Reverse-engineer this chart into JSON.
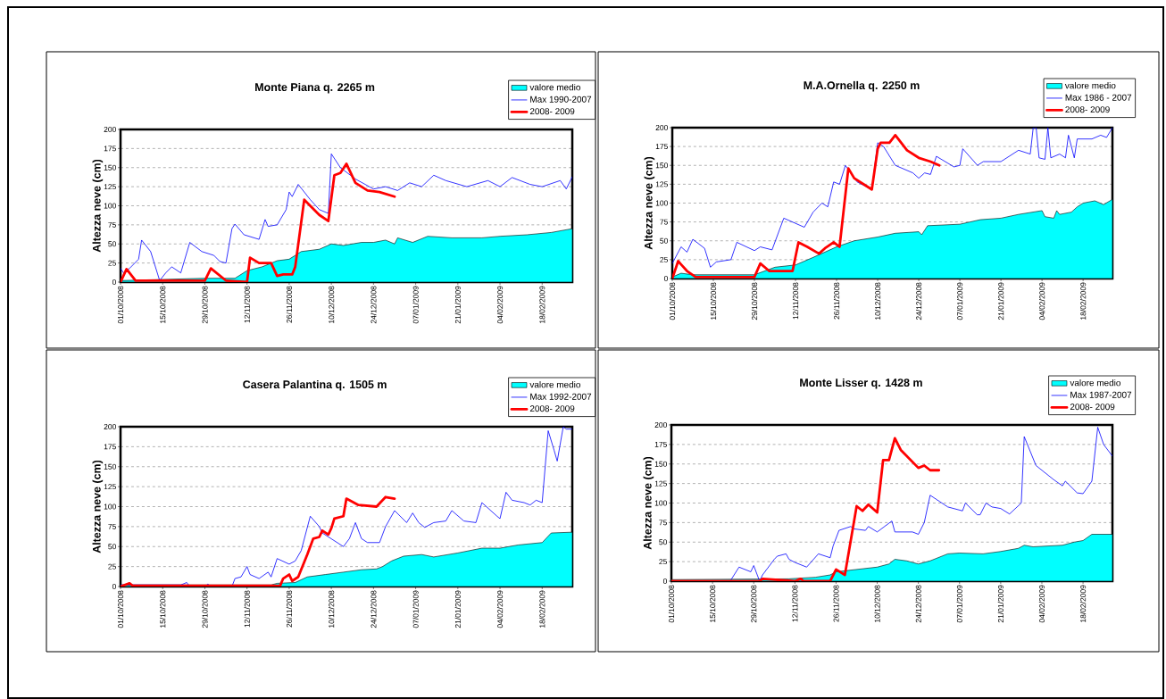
{
  "chart_data": [
    {
      "type": "line",
      "title": "Monte Piana q. 2265 m",
      "ylabel": "Altezza neve (cm)",
      "legend": "top right",
      "grid": "y",
      "xlim": [
        "2008-10-01",
        "2009-02-28"
      ],
      "xticks": [
        {
          "value": "2008-10-01",
          "label": "01/10/2008"
        },
        {
          "value": "2008-10-15",
          "label": "15/10/2008"
        },
        {
          "value": "2008-10-29",
          "label": "29/10/2008"
        },
        {
          "value": "2008-11-12",
          "label": "12/11/2008"
        },
        {
          "value": "2008-11-26",
          "label": "26/11/2008"
        },
        {
          "value": "2008-12-10",
          "label": "10/12/2008"
        },
        {
          "value": "2008-12-24",
          "label": "24/12/2008"
        },
        {
          "value": "2009-01-07",
          "label": "07/01/2009"
        },
        {
          "value": "2009-01-21",
          "label": "21/01/2009"
        },
        {
          "value": "2009-02-04",
          "label": "04/02/2009"
        },
        {
          "value": "2009-02-18",
          "label": "18/02/2009"
        }
      ],
      "ylim": [
        0,
        200
      ],
      "yticks": [
        0,
        25,
        50,
        75,
        100,
        125,
        150,
        175,
        200
      ],
      "series": [
        {
          "name": "valore medio",
          "type": "area",
          "color": "#00ffff",
          "x": [
            "2008-10-01",
            "2008-10-29",
            "2008-11-08",
            "2008-11-12",
            "2008-11-17",
            "2008-11-22",
            "2008-11-26",
            "2008-11-30",
            "2008-12-06",
            "2008-12-10",
            "2008-12-14",
            "2008-12-20",
            "2008-12-24",
            "2008-12-28",
            "2008-12-31",
            "2009-01-01",
            "2009-01-06",
            "2009-01-11",
            "2009-01-19",
            "2009-01-29",
            "2009-02-04",
            "2009-02-13",
            "2009-02-21",
            "2009-02-28"
          ],
          "values": [
            2,
            5,
            5,
            15,
            20,
            28,
            30,
            40,
            43,
            50,
            48,
            52,
            52,
            55,
            50,
            58,
            52,
            60,
            58,
            58,
            60,
            62,
            65,
            70
          ]
        },
        {
          "name": "Max 1990-2007",
          "type": "line",
          "color": "#0000ff",
          "x": [
            "2008-10-01",
            "2008-10-02",
            "2008-10-04",
            "2008-10-07",
            "2008-10-08",
            "2008-10-11",
            "2008-10-14",
            "2008-10-16",
            "2008-10-18",
            "2008-10-21",
            "2008-10-24",
            "2008-10-28",
            "2008-11-01",
            "2008-11-03",
            "2008-11-05",
            "2008-11-07",
            "2008-11-08",
            "2008-11-11",
            "2008-11-16",
            "2008-11-18",
            "2008-11-19",
            "2008-11-22",
            "2008-11-25",
            "2008-11-26",
            "2008-11-27",
            "2008-11-29",
            "2008-12-03",
            "2008-12-06",
            "2008-12-09",
            "2008-12-10",
            "2008-12-13",
            "2008-12-18",
            "2008-12-24",
            "2008-12-28",
            "2009-01-01",
            "2009-01-05",
            "2009-01-09",
            "2009-01-13",
            "2009-01-17",
            "2009-01-24",
            "2009-01-31",
            "2009-02-04",
            "2009-02-08",
            "2009-02-14",
            "2009-02-18",
            "2009-02-24",
            "2009-02-26",
            "2009-02-28"
          ],
          "values": [
            18,
            12,
            18,
            30,
            55,
            40,
            2,
            12,
            20,
            12,
            52,
            40,
            35,
            27,
            25,
            70,
            76,
            62,
            56,
            82,
            73,
            75,
            95,
            118,
            112,
            128,
            108,
            95,
            90,
            168,
            150,
            135,
            122,
            125,
            120,
            130,
            125,
            140,
            133,
            125,
            133,
            125,
            137,
            128,
            125,
            133,
            122,
            138
          ]
        },
        {
          "name": "2008- 2009",
          "type": "line",
          "color": "#ff0000",
          "x": [
            "2008-10-01",
            "2008-10-03",
            "2008-10-06",
            "2008-10-29",
            "2008-10-31",
            "2008-11-05",
            "2008-11-12",
            "2008-11-13",
            "2008-11-16",
            "2008-11-20",
            "2008-11-22",
            "2008-11-24",
            "2008-11-27",
            "2008-11-28",
            "2008-12-01",
            "2008-12-06",
            "2008-12-09",
            "2008-12-11",
            "2008-12-13",
            "2008-12-15",
            "2008-12-18",
            "2008-12-22",
            "2008-12-26",
            "2008-12-31"
          ],
          "values": [
            0,
            17,
            2,
            2,
            18,
            2,
            0,
            32,
            25,
            25,
            8,
            10,
            10,
            20,
            108,
            88,
            80,
            140,
            143,
            155,
            130,
            120,
            118,
            112
          ]
        }
      ]
    },
    {
      "type": "line",
      "title": "M.A.Ornella q. 2250 m",
      "ylabel": "Altezza neve (cm)",
      "legend": "top right",
      "grid": "y",
      "xlim": [
        "2008-10-01",
        "2009-02-28"
      ],
      "xticks": [
        {
          "value": "2008-10-01",
          "label": "01/10/2008"
        },
        {
          "value": "2008-10-15",
          "label": "15/10/2008"
        },
        {
          "value": "2008-10-29",
          "label": "29/10/2008"
        },
        {
          "value": "2008-11-12",
          "label": "12/11/2008"
        },
        {
          "value": "2008-11-26",
          "label": "26/11/2008"
        },
        {
          "value": "2008-12-10",
          "label": "10/12/2008"
        },
        {
          "value": "2008-12-24",
          "label": "24/12/2008"
        },
        {
          "value": "2009-01-07",
          "label": "07/01/2009"
        },
        {
          "value": "2009-01-21",
          "label": "21/01/2009"
        },
        {
          "value": "2009-02-04",
          "label": "04/02/2009"
        },
        {
          "value": "2009-02-18",
          "label": "18/02/2009"
        }
      ],
      "ylim": [
        0,
        200
      ],
      "yticks": [
        0,
        25,
        50,
        75,
        100,
        125,
        150,
        175,
        200
      ],
      "series": [
        {
          "name": "valore medio",
          "type": "area",
          "color": "#00ffff",
          "x": [
            "2008-10-01",
            "2008-10-04",
            "2008-10-08",
            "2008-10-29",
            "2008-11-05",
            "2008-11-12",
            "2008-11-18",
            "2008-11-26",
            "2008-12-02",
            "2008-12-10",
            "2008-12-16",
            "2008-12-24",
            "2008-12-25",
            "2008-12-27",
            "2009-01-07",
            "2009-01-14",
            "2009-01-21",
            "2009-01-27",
            "2009-02-04",
            "2009-02-05",
            "2009-02-08",
            "2009-02-09",
            "2009-02-10",
            "2009-02-14",
            "2009-02-16",
            "2009-02-18",
            "2009-02-22",
            "2009-02-25",
            "2009-02-28"
          ],
          "values": [
            2,
            7,
            5,
            5,
            15,
            18,
            28,
            42,
            50,
            55,
            60,
            62,
            58,
            70,
            72,
            78,
            80,
            85,
            90,
            82,
            80,
            90,
            85,
            88,
            95,
            100,
            103,
            98,
            105
          ]
        },
        {
          "name": "Max 1986 - 2007",
          "type": "line",
          "color": "#0000ff",
          "x": [
            "2008-10-01",
            "2008-10-04",
            "2008-10-06",
            "2008-10-08",
            "2008-10-12",
            "2008-10-14",
            "2008-10-16",
            "2008-10-21",
            "2008-10-23",
            "2008-10-29",
            "2008-10-31",
            "2008-11-04",
            "2008-11-08",
            "2008-11-15",
            "2008-11-18",
            "2008-11-21",
            "2008-11-23",
            "2008-11-25",
            "2008-11-27",
            "2008-11-29",
            "2008-12-03",
            "2008-12-08",
            "2008-12-10",
            "2008-12-12",
            "2008-12-16",
            "2008-12-22",
            "2008-12-24",
            "2008-12-26",
            "2008-12-28",
            "2008-12-30",
            "2009-01-05",
            "2009-01-07",
            "2009-01-08",
            "2009-01-13",
            "2009-01-15",
            "2009-01-21",
            "2009-01-27",
            "2009-01-31",
            "2009-02-01",
            "2009-02-02",
            "2009-02-03",
            "2009-02-05",
            "2009-02-06",
            "2009-02-07",
            "2009-02-10",
            "2009-02-12",
            "2009-02-13",
            "2009-02-15",
            "2009-02-16",
            "2009-02-21",
            "2009-02-24",
            "2009-02-26",
            "2009-02-28"
          ],
          "values": [
            20,
            42,
            35,
            52,
            40,
            15,
            22,
            25,
            48,
            37,
            42,
            38,
            80,
            68,
            88,
            100,
            95,
            128,
            125,
            150,
            128,
            118,
            180,
            175,
            150,
            140,
            133,
            140,
            138,
            162,
            148,
            150,
            172,
            150,
            155,
            155,
            170,
            165,
            200,
            200,
            160,
            158,
            200,
            160,
            165,
            160,
            190,
            160,
            185,
            185,
            190,
            187,
            200
          ]
        },
        {
          "name": "2008- 2009",
          "type": "line",
          "color": "#ff0000",
          "x": [
            "2008-10-01",
            "2008-10-03",
            "2008-10-06",
            "2008-10-09",
            "2008-10-29",
            "2008-10-31",
            "2008-11-03",
            "2008-11-11",
            "2008-11-13",
            "2008-11-16",
            "2008-11-20",
            "2008-11-22",
            "2008-11-25",
            "2008-11-27",
            "2008-11-30",
            "2008-12-02",
            "2008-12-08",
            "2008-12-10",
            "2008-12-11",
            "2008-12-14",
            "2008-12-16",
            "2008-12-20",
            "2008-12-24",
            "2008-12-28",
            "2008-12-31"
          ],
          "values": [
            0,
            23,
            10,
            2,
            2,
            20,
            10,
            10,
            48,
            42,
            33,
            40,
            48,
            42,
            146,
            133,
            118,
            172,
            180,
            180,
            190,
            170,
            160,
            155,
            150
          ]
        }
      ]
    },
    {
      "type": "line",
      "title": "Casera Palantina q. 1505 m",
      "ylabel": "Altezza neve (cm)",
      "legend": "top right",
      "grid": "y",
      "xlim": [
        "2008-10-01",
        "2009-02-28"
      ],
      "xticks": [
        {
          "value": "2008-10-01",
          "label": "01/10/2008"
        },
        {
          "value": "2008-10-15",
          "label": "15/10/2008"
        },
        {
          "value": "2008-10-29",
          "label": "29/10/2008"
        },
        {
          "value": "2008-11-12",
          "label": "12/11/2008"
        },
        {
          "value": "2008-11-26",
          "label": "26/11/2008"
        },
        {
          "value": "2008-12-10",
          "label": "10/12/2008"
        },
        {
          "value": "2008-12-24",
          "label": "24/12/2008"
        },
        {
          "value": "2009-01-07",
          "label": "07/01/2009"
        },
        {
          "value": "2009-01-21",
          "label": "21/01/2009"
        },
        {
          "value": "2009-02-04",
          "label": "04/02/2009"
        },
        {
          "value": "2009-02-18",
          "label": "18/02/2009"
        }
      ],
      "ylim": [
        0,
        200
      ],
      "yticks": [
        0,
        25,
        50,
        75,
        100,
        125,
        150,
        175,
        200
      ],
      "series": [
        {
          "name": "valore medio",
          "type": "area",
          "color": "#00ffff",
          "x": [
            "2008-10-01",
            "2008-11-20",
            "2008-11-22",
            "2008-11-28",
            "2008-12-02",
            "2008-12-08",
            "2008-12-14",
            "2008-12-20",
            "2008-12-25",
            "2008-12-27",
            "2008-12-30",
            "2009-01-03",
            "2009-01-09",
            "2009-01-13",
            "2009-01-21",
            "2009-01-29",
            "2009-02-04",
            "2009-02-10",
            "2009-02-18",
            "2009-02-21",
            "2009-02-28"
          ],
          "values": [
            2,
            2,
            4,
            5,
            12,
            15,
            18,
            21,
            22,
            25,
            32,
            38,
            40,
            37,
            42,
            48,
            48,
            52,
            55,
            67,
            68
          ]
        },
        {
          "name": "Max 1992-2007",
          "type": "line",
          "color": "#0000ff",
          "x": [
            "2008-10-01",
            "2008-10-21",
            "2008-10-23",
            "2008-10-24",
            "2008-10-29",
            "2008-10-30",
            "2008-10-31",
            "2008-11-07",
            "2008-11-08",
            "2008-11-10",
            "2008-11-12",
            "2008-11-13",
            "2008-11-16",
            "2008-11-19",
            "2008-11-20",
            "2008-11-22",
            "2008-11-26",
            "2008-11-28",
            "2008-11-30",
            "2008-12-03",
            "2008-12-06",
            "2008-12-07",
            "2008-12-14",
            "2008-12-16",
            "2008-12-18",
            "2008-12-20",
            "2008-12-22",
            "2008-12-26",
            "2008-12-28",
            "2008-12-31",
            "2009-01-04",
            "2009-01-06",
            "2009-01-08",
            "2009-01-10",
            "2009-01-13",
            "2009-01-17",
            "2009-01-19",
            "2009-01-23",
            "2009-01-27",
            "2009-01-29",
            "2009-02-03",
            "2009-02-04",
            "2009-02-06",
            "2009-02-08",
            "2009-02-12",
            "2009-02-14",
            "2009-02-16",
            "2009-02-18",
            "2009-02-20",
            "2009-02-22",
            "2009-02-23",
            "2009-02-25",
            "2009-02-26",
            "2009-02-28"
          ],
          "values": [
            2,
            2,
            5,
            0,
            0,
            3,
            0,
            0,
            10,
            12,
            25,
            15,
            10,
            18,
            12,
            35,
            28,
            32,
            45,
            88,
            75,
            67,
            50,
            60,
            80,
            60,
            55,
            55,
            75,
            95,
            80,
            92,
            80,
            74,
            80,
            82,
            95,
            82,
            80,
            105,
            88,
            85,
            118,
            108,
            105,
            102,
            108,
            105,
            195,
            170,
            157,
            200,
            197,
            197
          ]
        },
        {
          "name": "2008- 2009",
          "type": "line",
          "color": "#ff0000",
          "x": [
            "2008-10-01",
            "2008-10-04",
            "2008-10-05",
            "2008-11-23",
            "2008-11-24",
            "2008-11-26",
            "2008-11-27",
            "2008-11-29",
            "2008-12-02",
            "2008-12-04",
            "2008-12-06",
            "2008-12-07",
            "2008-12-09",
            "2008-12-10",
            "2008-12-11",
            "2008-12-14",
            "2008-12-15",
            "2008-12-19",
            "2008-12-25",
            "2008-12-28",
            "2008-12-31"
          ],
          "values": [
            0,
            4,
            1,
            1,
            10,
            15,
            7,
            12,
            40,
            60,
            62,
            70,
            65,
            73,
            85,
            88,
            110,
            102,
            100,
            112,
            110
          ]
        }
      ]
    },
    {
      "type": "line",
      "title": "Monte Lisser q. 1428 m",
      "ylabel": "Altezza neve (cm)",
      "legend": "top right",
      "grid": "y",
      "xlim": [
        "2008-10-01",
        "2009-02-28"
      ],
      "xticks": [
        {
          "value": "2008-10-01",
          "label": "01/10/2008"
        },
        {
          "value": "2008-10-15",
          "label": "15/10/2008"
        },
        {
          "value": "2008-10-29",
          "label": "29/10/2008"
        },
        {
          "value": "2008-11-12",
          "label": "12/11/2008"
        },
        {
          "value": "2008-11-26",
          "label": "26/11/2008"
        },
        {
          "value": "2008-12-10",
          "label": "10/12/2008"
        },
        {
          "value": "2008-12-24",
          "label": "24/12/2008"
        },
        {
          "value": "2009-01-07",
          "label": "07/01/2009"
        },
        {
          "value": "2009-01-21",
          "label": "21/01/2009"
        },
        {
          "value": "2009-02-04",
          "label": "04/02/2009"
        },
        {
          "value": "2009-02-18",
          "label": "18/02/2009"
        }
      ],
      "ylim": [
        0,
        200
      ],
      "yticks": [
        0,
        25,
        50,
        75,
        100,
        125,
        150,
        175,
        200
      ],
      "series": [
        {
          "name": "valore medio",
          "type": "area",
          "color": "#00ffff",
          "x": [
            "2008-10-01",
            "2008-11-10",
            "2008-11-19",
            "2008-11-24",
            "2008-11-26",
            "2008-12-03",
            "2008-12-10",
            "2008-12-14",
            "2008-12-16",
            "2008-12-20",
            "2008-12-24",
            "2008-12-28",
            "2009-01-03",
            "2009-01-07",
            "2009-01-15",
            "2009-01-21",
            "2009-01-27",
            "2009-01-29",
            "2009-02-01",
            "2009-02-11",
            "2009-02-15",
            "2009-02-18",
            "2009-02-21",
            "2009-02-28"
          ],
          "values": [
            2,
            3,
            5,
            8,
            12,
            15,
            18,
            22,
            28,
            26,
            22,
            26,
            35,
            36,
            35,
            38,
            42,
            46,
            44,
            46,
            50,
            52,
            60,
            60
          ]
        },
        {
          "name": "Max 1987-2007",
          "type": "line",
          "color": "#0000ff",
          "x": [
            "2008-10-01",
            "2008-10-21",
            "2008-10-24",
            "2008-10-28",
            "2008-10-29",
            "2008-10-31",
            "2008-11-01",
            "2008-11-05",
            "2008-11-06",
            "2008-11-09",
            "2008-11-10",
            "2008-11-12",
            "2008-11-16",
            "2008-11-20",
            "2008-11-24",
            "2008-11-25",
            "2008-11-27",
            "2008-12-01",
            "2008-12-02",
            "2008-12-06",
            "2008-12-07",
            "2008-12-10",
            "2008-12-15",
            "2008-12-16",
            "2008-12-22",
            "2008-12-24",
            "2008-12-26",
            "2008-12-28",
            "2009-01-03",
            "2009-01-08",
            "2009-01-09",
            "2009-01-13",
            "2009-01-14",
            "2009-01-16",
            "2009-01-18",
            "2009-01-21",
            "2009-01-24",
            "2009-01-28",
            "2009-01-29",
            "2009-02-02",
            "2009-02-08",
            "2009-02-11",
            "2009-02-12",
            "2009-02-16",
            "2009-02-18",
            "2009-02-21",
            "2009-02-23",
            "2009-02-25",
            "2009-02-28"
          ],
          "values": [
            0,
            0,
            18,
            12,
            20,
            0,
            8,
            28,
            32,
            35,
            28,
            24,
            18,
            35,
            30,
            45,
            65,
            70,
            67,
            65,
            70,
            63,
            77,
            63,
            63,
            60,
            75,
            110,
            95,
            90,
            100,
            85,
            85,
            100,
            95,
            93,
            86,
            100,
            185,
            148,
            130,
            122,
            128,
            113,
            112,
            128,
            197,
            175,
            160
          ]
        },
        {
          "name": "2008- 2009",
          "type": "line",
          "color": "#ff0000",
          "x": [
            "2008-10-01",
            "2008-10-31",
            "2008-11-01",
            "2008-11-12",
            "2008-11-14",
            "2008-11-15",
            "2008-11-24",
            "2008-11-26",
            "2008-11-29",
            "2008-12-03",
            "2008-12-05",
            "2008-12-07",
            "2008-12-10",
            "2008-12-12",
            "2008-12-14",
            "2008-12-16",
            "2008-12-18",
            "2008-12-24",
            "2008-12-26",
            "2008-12-28",
            "2008-12-31"
          ],
          "values": [
            0,
            0,
            3,
            0,
            3,
            0,
            0,
            15,
            8,
            96,
            90,
            98,
            88,
            155,
            155,
            183,
            168,
            145,
            148,
            142,
            142
          ]
        }
      ]
    }
  ]
}
